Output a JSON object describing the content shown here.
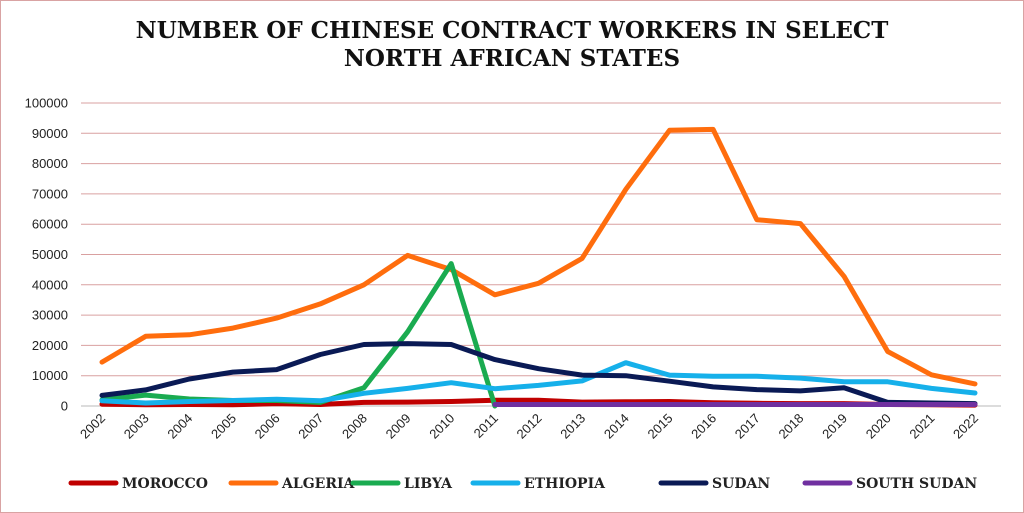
{
  "chart_data": {
    "type": "line",
    "title_line1": "NUMBER OF CHINESE CONTRACT WORKERS IN SELECT",
    "title_line2": "NORTH AFRICAN STATES",
    "xlabel": "",
    "ylabel": "",
    "ylim": [
      0,
      100000
    ],
    "yticks": [
      "0",
      "10000",
      "20000",
      "30000",
      "40000",
      "50000",
      "60000",
      "70000",
      "80000",
      "90000",
      "100000"
    ],
    "categories": [
      "2002",
      "2003",
      "2004",
      "2005",
      "2006",
      "2007",
      "2008",
      "2009",
      "2010",
      "2011",
      "2012",
      "2013",
      "2014",
      "2015",
      "2016",
      "2017",
      "2018",
      "2019",
      "2020",
      "2021",
      "2022"
    ],
    "grid": true,
    "legend_position": "bottom",
    "series": [
      {
        "name": "MOROCCO",
        "color": "#c00000",
        "values": [
          600,
          400,
          500,
          400,
          800,
          500,
          1200,
          1300,
          1500,
          1900,
          1900,
          1300,
          1400,
          1500,
          1100,
          900,
          800,
          800,
          500,
          400,
          300
        ]
      },
      {
        "name": "ALGERIA",
        "color": "#ff6d0d",
        "values": [
          14500,
          23000,
          23500,
          25700,
          29000,
          33700,
          40000,
          49700,
          45000,
          36700,
          40500,
          48700,
          71500,
          91000,
          91300,
          61500,
          60200,
          42800,
          18000,
          10300,
          7300
        ]
      },
      {
        "name": "LIBYA",
        "color": "#1aab50",
        "values": [
          2000,
          3600,
          2300,
          1800,
          1800,
          1200,
          6000,
          24500,
          47000,
          0,
          null,
          null,
          null,
          null,
          null,
          null,
          null,
          null,
          null,
          null,
          null
        ]
      },
      {
        "name": "ETHIOPIA",
        "color": "#16b0ea",
        "values": [
          1700,
          1000,
          1500,
          1800,
          2200,
          1700,
          4200,
          5800,
          7700,
          5700,
          6800,
          8300,
          14300,
          10200,
          9800,
          9800,
          9200,
          8000,
          8000,
          5800,
          4300
        ]
      },
      {
        "name": "SUDAN",
        "color": "#0a1a55",
        "values": [
          3500,
          5300,
          8900,
          11200,
          12000,
          17000,
          20300,
          20600,
          20300,
          15300,
          12300,
          10200,
          10000,
          8200,
          6300,
          5400,
          5000,
          6000,
          1200,
          1000,
          800
        ]
      },
      {
        "name": "SOUTH SUDAN",
        "color": "#7030a0",
        "values": [
          null,
          null,
          null,
          null,
          null,
          null,
          null,
          null,
          null,
          500,
          500,
          500,
          500,
          500,
          500,
          500,
          500,
          500,
          500,
          500,
          500
        ]
      }
    ]
  }
}
